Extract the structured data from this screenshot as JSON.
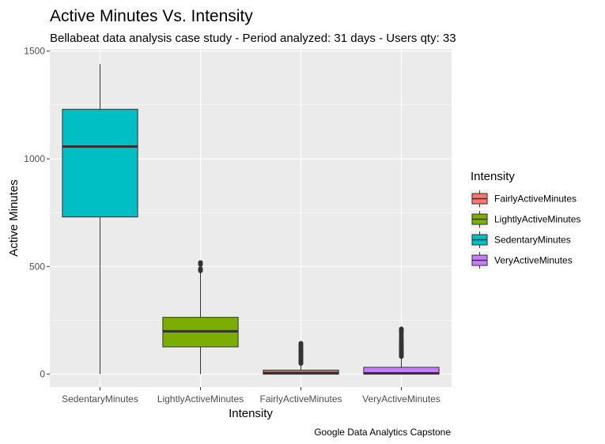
{
  "chart_data": {
    "type": "box",
    "title": "Active Minutes Vs. Intensity",
    "subtitle": "Bellabeat data analysis case study - Period analyzed: 31 days - Users qty: 33",
    "xlabel": "Intensity",
    "ylabel": "Active Minutes",
    "caption": "Google Data Analytics Capstone",
    "ylim": [
      -60,
      1510
    ],
    "yticks": [
      0,
      500,
      1000,
      1500
    ],
    "grid": true,
    "legend": {
      "title": "Intensity",
      "placement": "right",
      "entries": [
        "FairlyActiveMinutes",
        "LightlyActiveMinutes",
        "SedentaryMinutes",
        "VeryActiveMinutes"
      ]
    },
    "categories": [
      "SedentaryMinutes",
      "LightlyActiveMinutes",
      "FairlyActiveMinutes",
      "VeryActiveMinutes"
    ],
    "series": [
      {
        "name": "SedentaryMinutes",
        "color": "#00BFC4",
        "min": 0,
        "q1": 730,
        "median": 1057,
        "q3": 1230,
        "max": 1440,
        "outliers": []
      },
      {
        "name": "LightlyActiveMinutes",
        "color": "#7CAE00",
        "min": 0,
        "q1": 127,
        "median": 199,
        "q3": 264,
        "max": 470,
        "outliers": [
          480,
          485,
          490,
          510,
          515,
          518
        ]
      },
      {
        "name": "FairlyActiveMinutes",
        "color": "#F8766D",
        "min": 0,
        "q1": 0,
        "median": 6,
        "q3": 19,
        "max": 47,
        "outliers": [
          50,
          55,
          60,
          65,
          70,
          75,
          80,
          85,
          90,
          95,
          100,
          105,
          110,
          115,
          120,
          128,
          135,
          143
        ]
      },
      {
        "name": "VeryActiveMinutes",
        "color": "#C77CFF",
        "min": 0,
        "q1": 0,
        "median": 4,
        "q3": 32,
        "max": 79,
        "outliers": [
          82,
          87,
          92,
          97,
          102,
          107,
          112,
          117,
          122,
          127,
          132,
          137,
          142,
          150,
          157,
          165,
          175,
          185,
          195,
          200,
          205,
          210
        ]
      }
    ]
  }
}
